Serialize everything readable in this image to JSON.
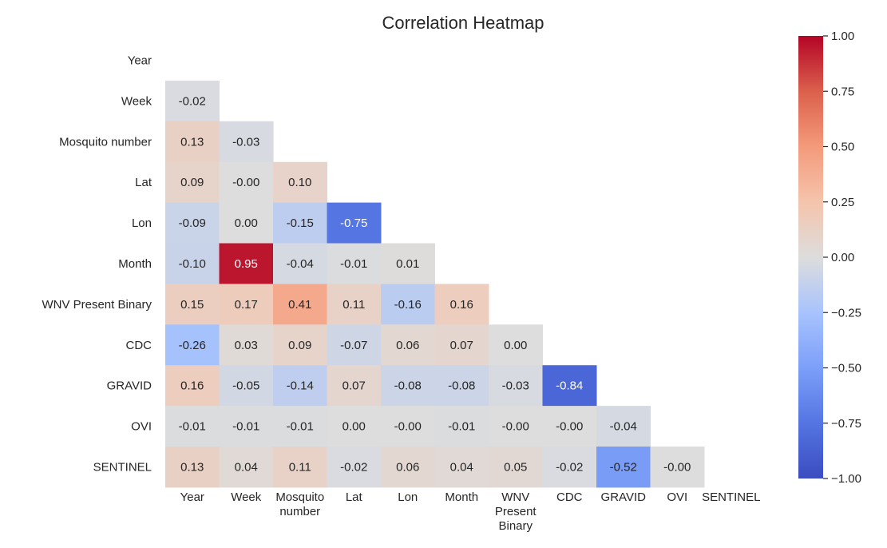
{
  "chart_data": {
    "type": "heatmap",
    "title": "Correlation Heatmap",
    "xlabel": "",
    "ylabel": "",
    "row_labels": [
      "Year",
      "Week",
      "Mosquito number",
      "Lat",
      "Lon",
      "Month",
      "WNV Present Binary",
      "CDC",
      "GRAVID",
      "OVI",
      "SENTINEL"
    ],
    "col_labels": [
      [
        "Year"
      ],
      [
        "Week"
      ],
      [
        "Mosquito",
        "number"
      ],
      [
        "Lat"
      ],
      [
        "Lon"
      ],
      [
        "Month"
      ],
      [
        "WNV",
        "Present",
        "Binary"
      ],
      [
        "CDC"
      ],
      [
        "GRAVID"
      ],
      [
        "OVI"
      ],
      [
        "SENTINEL"
      ]
    ],
    "mask": "upper triangle including diagonal",
    "values": [
      [],
      [
        -0.02
      ],
      [
        0.13,
        -0.03
      ],
      [
        0.09,
        -0.0,
        0.1
      ],
      [
        -0.09,
        0.0,
        -0.15,
        -0.75
      ],
      [
        -0.1,
        0.95,
        -0.04,
        -0.01,
        0.01
      ],
      [
        0.15,
        0.17,
        0.41,
        0.11,
        -0.16,
        0.16
      ],
      [
        -0.26,
        0.03,
        0.09,
        -0.07,
        0.06,
        0.07,
        0.0
      ],
      [
        0.16,
        -0.05,
        -0.14,
        0.07,
        -0.08,
        -0.08,
        -0.03,
        -0.84
      ],
      [
        -0.01,
        -0.01,
        -0.01,
        0.0,
        -0.0,
        -0.01,
        -0.0,
        -0.0,
        -0.04
      ],
      [
        0.13,
        0.04,
        0.11,
        -0.02,
        0.06,
        0.04,
        0.05,
        -0.02,
        -0.52,
        -0.0
      ]
    ],
    "cell_text": [
      [],
      [
        "-0.02"
      ],
      [
        "0.13",
        "-0.03"
      ],
      [
        "0.09",
        "-0.00",
        "0.10"
      ],
      [
        "-0.09",
        "0.00",
        "-0.15",
        "-0.75"
      ],
      [
        "-0.10",
        "0.95",
        "-0.04",
        "-0.01",
        "0.01"
      ],
      [
        "0.15",
        "0.17",
        "0.41",
        "0.11",
        "-0.16",
        "0.16"
      ],
      [
        "-0.26",
        "0.03",
        "0.09",
        "-0.07",
        "0.06",
        "0.07",
        "0.00"
      ],
      [
        "0.16",
        "-0.05",
        "-0.14",
        "0.07",
        "-0.08",
        "-0.08",
        "-0.03",
        "-0.84"
      ],
      [
        "-0.01",
        "-0.01",
        "-0.01",
        "0.00",
        "-0.00",
        "-0.01",
        "-0.00",
        "-0.00",
        "-0.04"
      ],
      [
        "0.13",
        "0.04",
        "0.11",
        "-0.02",
        "0.06",
        "0.04",
        "0.05",
        "-0.02",
        "-0.52",
        "-0.00"
      ]
    ],
    "colormap": "coolwarm",
    "vmin": -1.0,
    "vmax": 1.0,
    "colorbar": {
      "position": "right",
      "ticks": [
        1.0,
        0.75,
        0.5,
        0.25,
        0.0,
        -0.25,
        -0.5,
        -0.75,
        -1.0
      ],
      "tick_labels": [
        "1.00",
        "0.75",
        "0.50",
        "0.25",
        "0.00",
        "−0.25",
        "−0.50",
        "−0.75",
        "−1.00"
      ]
    },
    "grid": false,
    "legend": "none"
  }
}
